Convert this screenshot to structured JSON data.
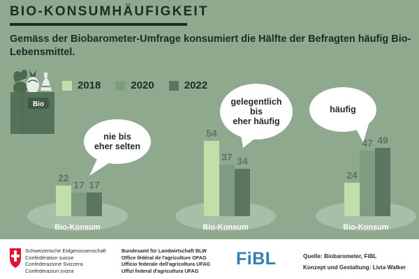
{
  "header": {
    "title": "BIO-KONSUMHÄUFIGKEIT",
    "subtitle": "Gemäss der Biobarometer-Umfrage konsumiert die Hälfte der Befragten häufig Bio-Lebensmittel."
  },
  "bag_label": "Bio",
  "chart_data": {
    "type": "bar",
    "categories": [
      "nie bis eher selten",
      "gelegentlich bis eher häufig",
      "häufig"
    ],
    "category_lines": [
      [
        "nie bis",
        "eher selten"
      ],
      [
        "gelegentlich",
        "bis",
        "eher häufig"
      ],
      [
        "häufig"
      ]
    ],
    "series": [
      {
        "name": "2018",
        "values": [
          22,
          54,
          24
        ],
        "color": "#c1dfa9"
      },
      {
        "name": "2020",
        "values": [
          17,
          37,
          47
        ],
        "color": "#7f9c80"
      },
      {
        "name": "2022",
        "values": [
          17,
          34,
          49
        ],
        "color": "#5c7561"
      }
    ],
    "base_label": "Bio-Konsum",
    "ylim": [
      0,
      60
    ]
  },
  "footer": {
    "swiss_lines": [
      "Schweizerische Eidgenossenschaft",
      "Confédération suisse",
      "Confederazione Svizzera",
      "Confederaziun svizra"
    ],
    "office_lines": [
      "Bundesamt für Landwirtschaft BLW",
      "Office fédéral de l'agriculture OFAG",
      "Ufficio federale dell'agricoltura UFAG",
      "Uffizi federal d'agricultura UFAG"
    ],
    "fibl": "FiBL",
    "source": "Quelle:  Biobarometer, FiBL",
    "credit": "Konzept und Gestaltung:  Livia Walker"
  },
  "colors": {
    "background": "#8fa98f",
    "text": "#1f2b22",
    "fibl": "#2f7fb8",
    "swiss_red": "#e8112d"
  }
}
